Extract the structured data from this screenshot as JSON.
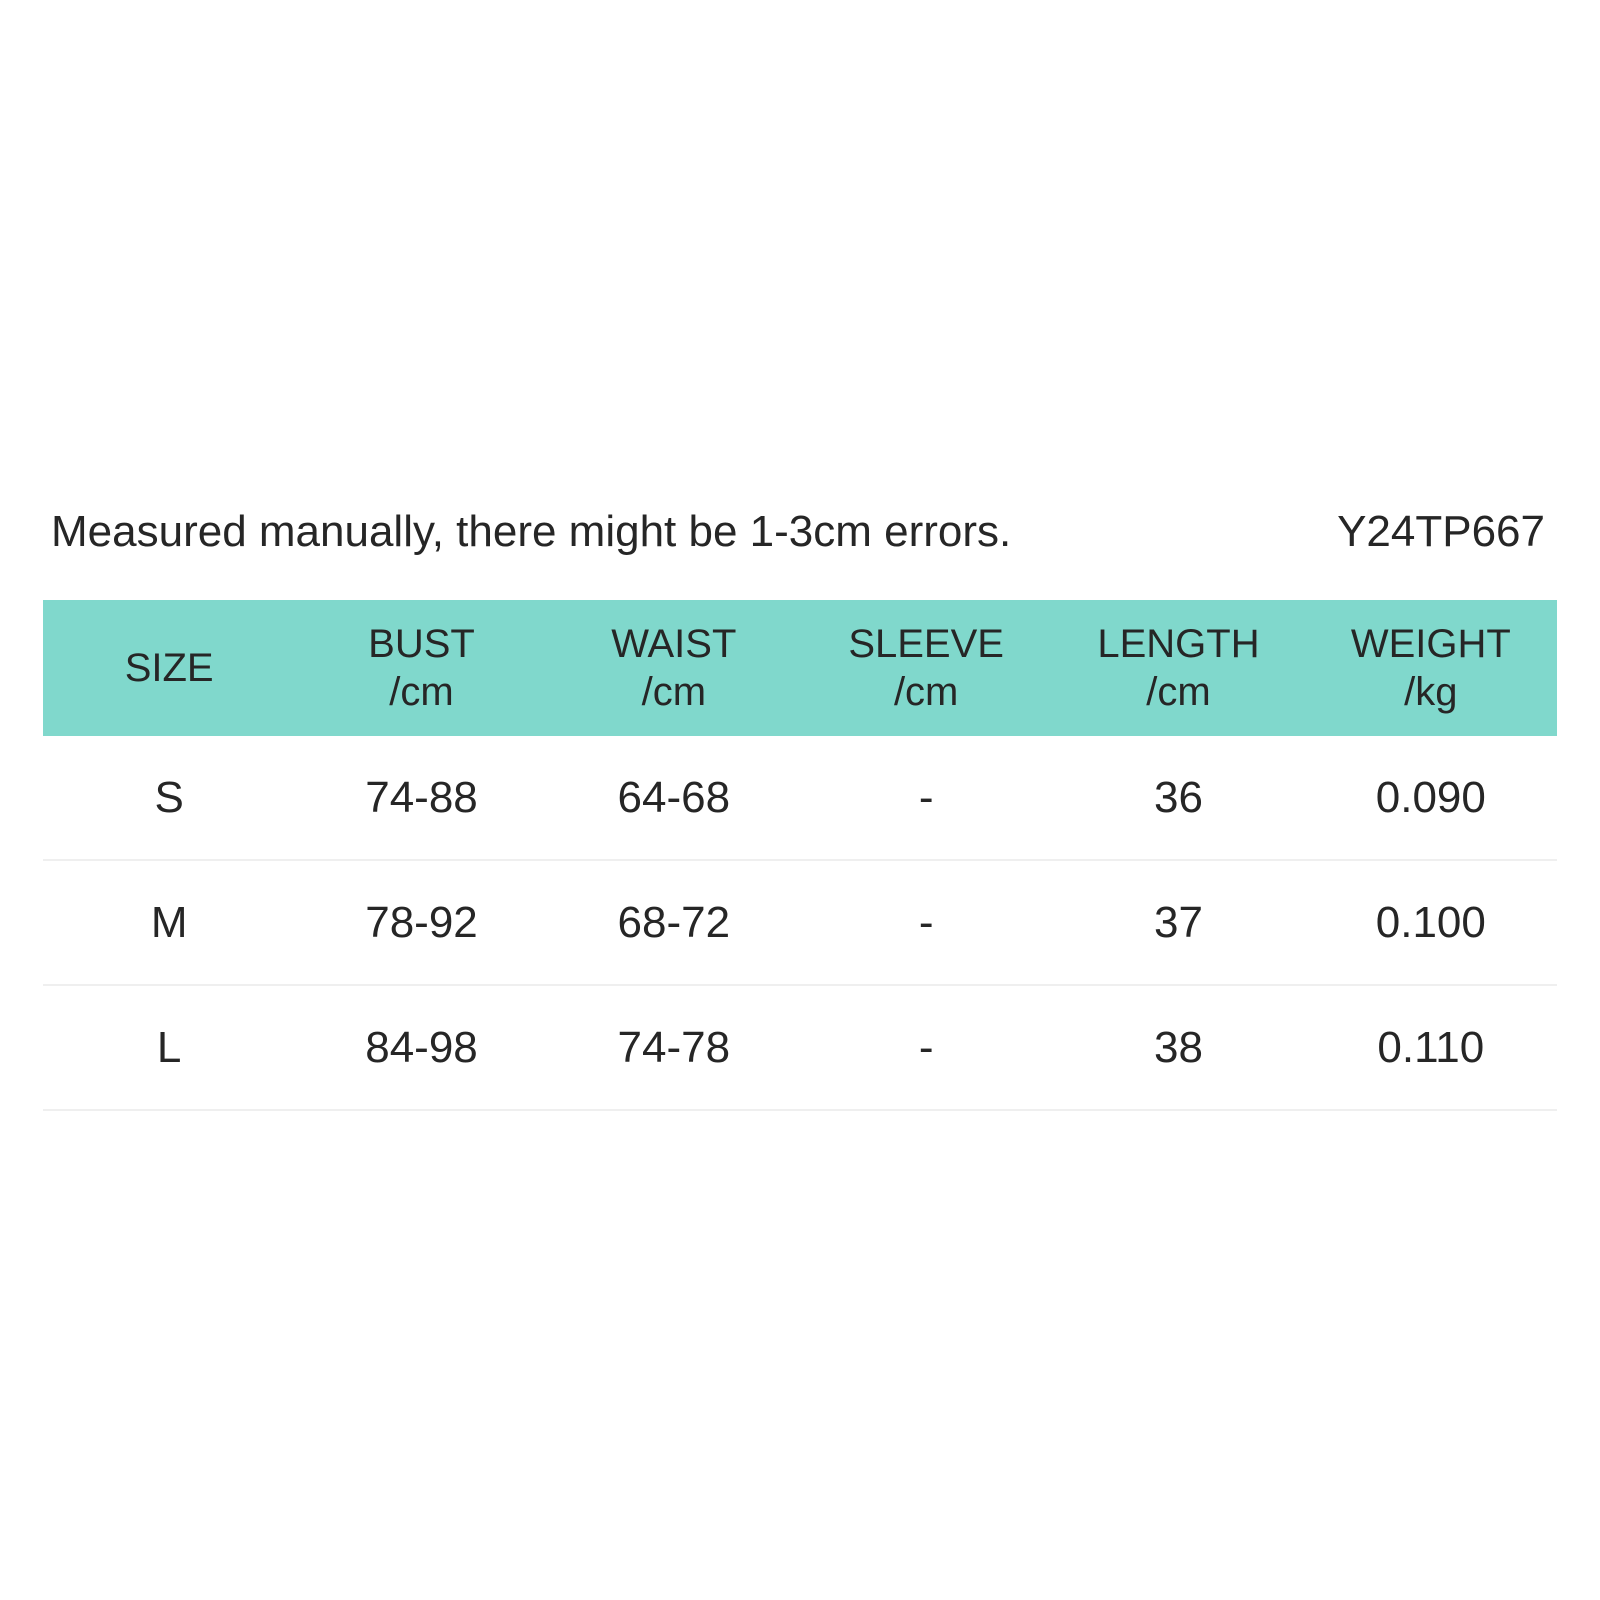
{
  "theme": {
    "background": "#ffffff",
    "header_bg": "#80d8cc",
    "text_color": "#262626",
    "divider_color": "#efefef"
  },
  "note": {
    "text": "Measured manually, there might be 1-3cm errors.",
    "product_code": "Y24TP667"
  },
  "size_table": {
    "columns": [
      {
        "label": "SIZE",
        "unit": ""
      },
      {
        "label": "BUST",
        "unit": "/cm"
      },
      {
        "label": "WAIST",
        "unit": "/cm"
      },
      {
        "label": "SLEEVE",
        "unit": "/cm"
      },
      {
        "label": "LENGTH",
        "unit": "/cm"
      },
      {
        "label": "WEIGHT",
        "unit": "/kg"
      }
    ],
    "rows": [
      [
        "S",
        "74-88",
        "64-68",
        "-",
        "36",
        "0.090"
      ],
      [
        "M",
        "78-92",
        "68-72",
        "-",
        "37",
        "0.100"
      ],
      [
        "L",
        "84-98",
        "74-78",
        "-",
        "38",
        "0.110"
      ]
    ]
  },
  "chart_data": {
    "type": "table",
    "columns": [
      "SIZE",
      "BUST /cm",
      "WAIST /cm",
      "SLEEVE /cm",
      "LENGTH /cm",
      "WEIGHT /kg"
    ],
    "rows": [
      [
        "S",
        "74-88",
        "64-68",
        "-",
        "36",
        "0.090"
      ],
      [
        "M",
        "78-92",
        "68-72",
        "-",
        "37",
        "0.100"
      ],
      [
        "L",
        "84-98",
        "74-78",
        "-",
        "38",
        "0.110"
      ]
    ],
    "annotations": [
      "Measured manually, there might be 1-3cm errors.",
      "Y24TP667"
    ],
    "legend_position": "none",
    "grid": "horizontal-dividers"
  }
}
